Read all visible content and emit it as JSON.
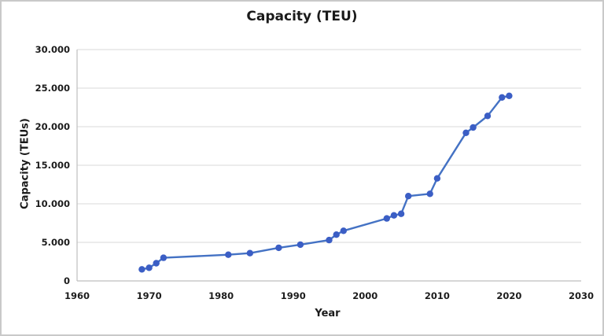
{
  "frame": {
    "background_color": "#ffffff",
    "border_color": "#c9c9c9"
  },
  "chart_data": {
    "type": "line",
    "title": "Capacity (TEU)",
    "xlabel": "Year",
    "ylabel": "Capacity (TEUs)",
    "xlim": [
      1960,
      2030
    ],
    "ylim": [
      0,
      30000
    ],
    "grid": "horizontal",
    "legend": "none",
    "x_tick_values": [
      1960,
      1970,
      1980,
      1990,
      2000,
      2010,
      2020,
      2030
    ],
    "x_tick_labels": [
      "1960",
      "1970",
      "1980",
      "1990",
      "2000",
      "2010",
      "2020",
      "2030"
    ],
    "y_tick_values": [
      0,
      5000,
      10000,
      15000,
      20000,
      25000,
      30000
    ],
    "y_tick_labels": [
      "0",
      "5.000",
      "10.000",
      "15.000",
      "20.000",
      "25.000",
      "30.000"
    ],
    "series": [
      {
        "name": "Capacity (TEU)",
        "points": [
          {
            "year": 1969,
            "teu": 1500
          },
          {
            "year": 1970,
            "teu": 1700
          },
          {
            "year": 1971,
            "teu": 2300
          },
          {
            "year": 1972,
            "teu": 3000
          },
          {
            "year": 1981,
            "teu": 3400
          },
          {
            "year": 1984,
            "teu": 3600
          },
          {
            "year": 1988,
            "teu": 4300
          },
          {
            "year": 1991,
            "teu": 4700
          },
          {
            "year": 1995,
            "teu": 5300
          },
          {
            "year": 1996,
            "teu": 6000
          },
          {
            "year": 1997,
            "teu": 6500
          },
          {
            "year": 2003,
            "teu": 8100
          },
          {
            "year": 2004,
            "teu": 8500
          },
          {
            "year": 2005,
            "teu": 8700
          },
          {
            "year": 2006,
            "teu": 11000
          },
          {
            "year": 2009,
            "teu": 11300
          },
          {
            "year": 2010,
            "teu": 13300
          },
          {
            "year": 2014,
            "teu": 19200
          },
          {
            "year": 2015,
            "teu": 19900
          },
          {
            "year": 2017,
            "teu": 21400
          },
          {
            "year": 2019,
            "teu": 23800
          },
          {
            "year": 2020,
            "teu": 24000
          }
        ]
      }
    ],
    "colors": {
      "line": "#4472C4",
      "marker": "#3B5EC5",
      "gridline": "#d9d9d9",
      "axis_line": "#bfbfbf",
      "text": "#1c1c1c"
    }
  }
}
